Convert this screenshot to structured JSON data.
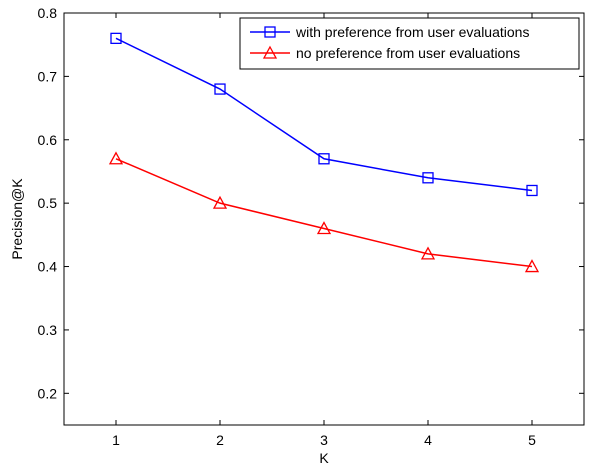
{
  "chart_data": {
    "type": "line",
    "title": "",
    "xlabel": "K",
    "ylabel": "Precision@K",
    "x": [
      1,
      2,
      3,
      4,
      5
    ],
    "xlim": [
      0.5,
      5.5
    ],
    "ylim": [
      0.15,
      0.8
    ],
    "xticks": [
      "1",
      "2",
      "3",
      "4",
      "5"
    ],
    "yticks": [
      "0.2",
      "0.3",
      "0.4",
      "0.5",
      "0.6",
      "0.7",
      "0.8"
    ],
    "grid": false,
    "legend_position": "top-right",
    "series": [
      {
        "name": "with preference from user evaluations",
        "values": [
          0.76,
          0.68,
          0.57,
          0.54,
          0.52
        ],
        "color": "#0000ff",
        "marker": "square"
      },
      {
        "name": "no preference from user evaluations",
        "values": [
          0.57,
          0.5,
          0.46,
          0.42,
          0.4
        ],
        "color": "#ff0000",
        "marker": "triangle"
      }
    ]
  }
}
